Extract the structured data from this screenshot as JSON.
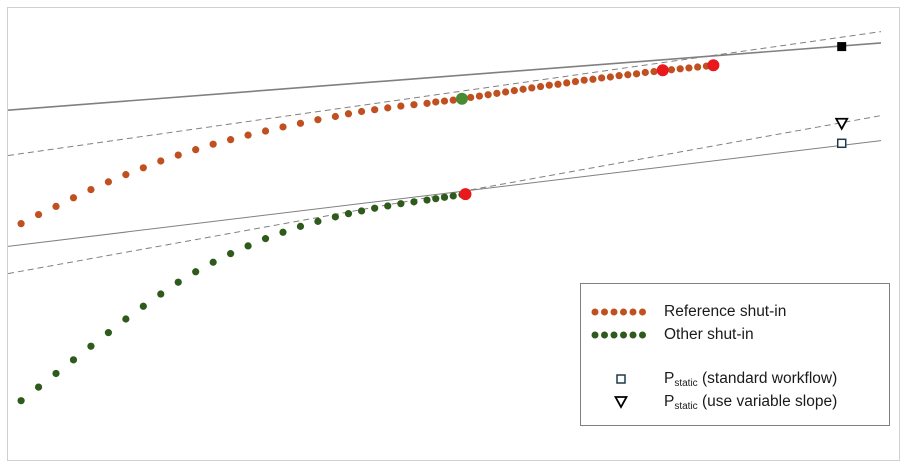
{
  "colors": {
    "reference": "#c0501f",
    "other": "#2e5a1c",
    "highlight_red": "#e8181c",
    "highlight_green": "#4a8a32",
    "fit_line": "#808080"
  },
  "chart_data": {
    "type": "scatter",
    "title": "",
    "xlabel": "",
    "ylabel": "",
    "grid": false,
    "axes_visible": false,
    "legend_position": "bottom-right",
    "xlim": [
      0,
      100
    ],
    "ylim": [
      0,
      100
    ],
    "series": [
      {
        "name": "Reference shut-in",
        "color": "#c0501f",
        "points": [
          [
            1.5,
            52.5
          ],
          [
            3.5,
            54.5
          ],
          [
            5.5,
            56.3
          ],
          [
            7.5,
            58.2
          ],
          [
            9.5,
            60
          ],
          [
            11.5,
            61.7
          ],
          [
            13.5,
            63.3
          ],
          [
            15.5,
            64.8
          ],
          [
            17.5,
            66.3
          ],
          [
            19.5,
            67.6
          ],
          [
            21.5,
            68.8
          ],
          [
            23.5,
            70
          ],
          [
            25.5,
            71
          ],
          [
            27.5,
            72
          ],
          [
            29.5,
            72.9
          ],
          [
            31.5,
            73.8
          ],
          [
            33.5,
            74.6
          ],
          [
            35.5,
            75.4
          ],
          [
            37.5,
            76.1
          ],
          [
            39,
            76.7
          ],
          [
            40.5,
            77.2
          ],
          [
            42,
            77.6
          ],
          [
            43.5,
            78
          ],
          [
            45,
            78.4
          ],
          [
            46.5,
            78.7
          ],
          [
            48,
            79
          ],
          [
            49,
            79.3
          ],
          [
            50,
            79.5
          ],
          [
            51,
            79.7
          ],
          [
            52,
            80
          ],
          [
            53,
            80.3
          ],
          [
            54,
            80.6
          ],
          [
            55,
            80.9
          ],
          [
            56,
            81.2
          ],
          [
            57,
            81.5
          ],
          [
            58,
            81.8
          ],
          [
            59,
            82.1
          ],
          [
            60,
            82.4
          ],
          [
            61,
            82.7
          ],
          [
            62,
            83
          ],
          [
            63,
            83.2
          ],
          [
            64,
            83.5
          ],
          [
            65,
            83.8
          ],
          [
            66,
            84.1
          ],
          [
            67,
            84.3
          ],
          [
            68,
            84.6
          ],
          [
            69,
            84.8
          ],
          [
            70,
            85.1
          ],
          [
            71,
            85.3
          ],
          [
            72,
            85.5
          ],
          [
            73,
            85.8
          ],
          [
            74,
            86
          ],
          [
            75,
            86.2
          ],
          [
            76,
            86.4
          ],
          [
            77,
            86.6
          ],
          [
            78,
            86.8
          ],
          [
            79,
            87
          ],
          [
            80,
            87.2
          ]
        ],
        "highlights": [
          {
            "x": 52.0,
            "y": 80.0,
            "color": "#4a8a32"
          },
          {
            "x": 75.0,
            "y": 86.3,
            "color": "#e8181c"
          },
          {
            "x": 80.8,
            "y": 87.4,
            "color": "#e8181c"
          }
        ]
      },
      {
        "name": "Other shut-in",
        "color": "#2e5a1c",
        "points": [
          [
            1.5,
            13.5
          ],
          [
            3.5,
            16.5
          ],
          [
            5.5,
            19.5
          ],
          [
            7.5,
            22.5
          ],
          [
            9.5,
            25.5
          ],
          [
            11.5,
            28.5
          ],
          [
            13.5,
            31.5
          ],
          [
            15.5,
            34.3
          ],
          [
            17.5,
            37
          ],
          [
            19.5,
            39.6
          ],
          [
            21.5,
            41.9
          ],
          [
            23.5,
            44
          ],
          [
            25.5,
            45.9
          ],
          [
            27.5,
            47.6
          ],
          [
            29.5,
            49.2
          ],
          [
            31.5,
            50.6
          ],
          [
            33.5,
            51.9
          ],
          [
            35.5,
            53
          ],
          [
            37.5,
            54
          ],
          [
            39,
            54.7
          ],
          [
            40.5,
            55.3
          ],
          [
            42,
            55.9
          ],
          [
            43.5,
            56.4
          ],
          [
            45,
            56.9
          ],
          [
            46.5,
            57.3
          ],
          [
            48,
            57.7
          ],
          [
            49,
            58
          ],
          [
            50,
            58.3
          ],
          [
            51,
            58.6
          ],
          [
            52,
            58.9
          ]
        ],
        "highlights": [
          {
            "x": 52.4,
            "y": 59.0,
            "color": "#e8181c"
          }
        ]
      },
      {
        "name": "P_static (standard workflow)",
        "marker": "square-open",
        "points": [
          [
            95.5,
            70.2
          ]
        ]
      },
      {
        "name": "P_static (use variable slope)",
        "marker": "triangle-down-open",
        "points": [
          [
            95.5,
            74.5
          ]
        ]
      },
      {
        "name": "",
        "marker": "square-filled",
        "points": [
          [
            95.5,
            91.5
          ]
        ]
      }
    ],
    "lines": [
      {
        "style": "solid",
        "width": 1.6,
        "points": [
          [
            0,
            77.5
          ],
          [
            100,
            92.3
          ]
        ]
      },
      {
        "style": "dashed",
        "width": 1.0,
        "points": [
          [
            0,
            67.5
          ],
          [
            100,
            94.8
          ]
        ]
      },
      {
        "style": "solid",
        "width": 1.0,
        "points": [
          [
            0,
            47.5
          ],
          [
            100,
            70.8
          ]
        ]
      },
      {
        "style": "dashed",
        "width": 1.0,
        "points": [
          [
            0,
            41.5
          ],
          [
            100,
            76.3
          ]
        ]
      }
    ]
  },
  "legend": {
    "items": [
      {
        "label": "Reference shut-in",
        "marker": "dots",
        "color": "#c0501f"
      },
      {
        "label": "Other shut-in",
        "marker": "dots",
        "color": "#2e5a1c"
      },
      {
        "label_main": "P",
        "label_sub": "static",
        "label_rest": " (standard workflow)",
        "marker": "square-open"
      },
      {
        "label_main": "P",
        "label_sub": "static",
        "label_rest": " (use variable slope)",
        "marker": "triangle-down-open"
      }
    ]
  }
}
